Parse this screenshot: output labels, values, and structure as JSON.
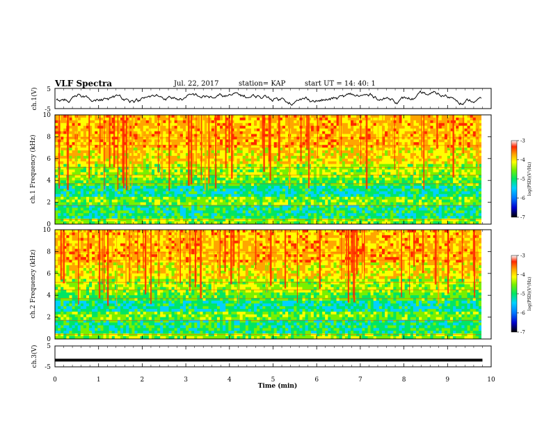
{
  "header": {
    "title": "VLF Spectra",
    "date": "Jul. 22, 2017",
    "station": "station= KAP",
    "start": "start  UT  =   14: 40: 1"
  },
  "chart_data": {
    "type": "heatmap",
    "xlabel": "Time (min)",
    "xlim": [
      0,
      10
    ],
    "xticks": [
      "0",
      "1",
      "2",
      "3",
      "4",
      "5",
      "6",
      "7",
      "8",
      "9",
      "10"
    ],
    "panels": [
      {
        "id": "ch1-voltage",
        "kind": "line",
        "ylabel": "ch.1(V)",
        "ylim": [
          -5,
          5
        ],
        "ytick_labels": [
          "5",
          "-5"
        ]
      },
      {
        "id": "ch1-spectrogram",
        "kind": "spectrogram",
        "ylabel": "ch.1 Frequency (kHz)",
        "ylim": [
          0,
          10
        ],
        "ytick_labels": [
          "0",
          "2",
          "4",
          "6",
          "8",
          "10"
        ],
        "colorbar": {
          "label": "log(PSD)(V²/Hz)",
          "range": [
            -7,
            -3
          ],
          "tick_labels": [
            "-3",
            "-4",
            "-5",
            "-6",
            "-7"
          ]
        }
      },
      {
        "id": "ch2-spectrogram",
        "kind": "spectrogram",
        "ylabel": "ch.2 Frequency (kHz)",
        "ylim": [
          0,
          10
        ],
        "ytick_labels": [
          "0",
          "2",
          "4",
          "6",
          "8",
          "10"
        ],
        "colorbar": {
          "label": "log(PSD)(V²/Hz)",
          "range": [
            -7,
            -3
          ],
          "tick_labels": [
            "-3",
            "-4",
            "-5",
            "-6",
            "-7"
          ]
        }
      },
      {
        "id": "ch3-voltage",
        "kind": "line",
        "ylabel": "ch.3(V)",
        "ylim": [
          -5,
          5
        ],
        "ytick_labels": [
          "5",
          "-5"
        ],
        "series": [
          {
            "x": [
              0,
              9.8
            ],
            "y": [
              -1.8,
              -1.8
            ]
          }
        ]
      }
    ],
    "colorscale": [
      "#000000",
      "#0000cc",
      "#0078ff",
      "#00d2ff",
      "#00e664",
      "#78f000",
      "#ffff00",
      "#ffa500",
      "#ff2800",
      "#ffffff"
    ]
  }
}
